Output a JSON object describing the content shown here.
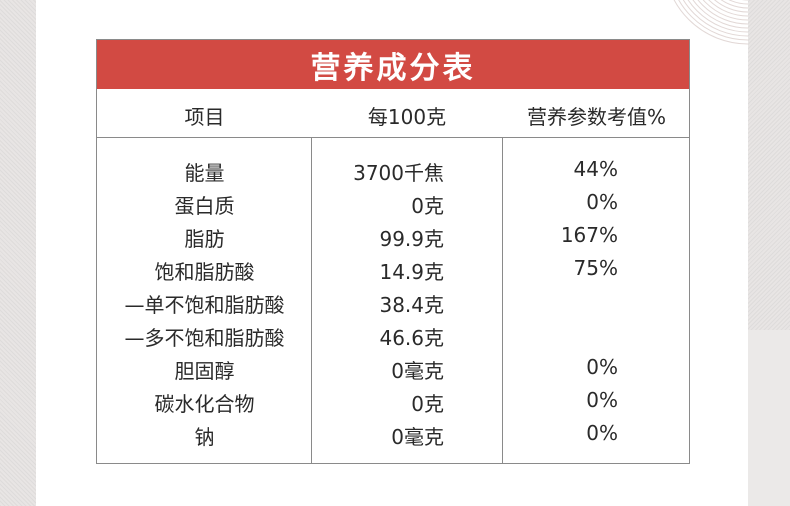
{
  "title": "营养成分表",
  "headers": {
    "item": "项目",
    "per100": "每100克",
    "nrv": "营养参数考值%"
  },
  "rows": [
    {
      "name": "能量",
      "amount": "3700千焦",
      "nrv": "44%"
    },
    {
      "name": "蛋白质",
      "amount": "0克",
      "nrv": "0%"
    },
    {
      "name": "脂肪",
      "amount": "99.9克",
      "nrv": "167%"
    },
    {
      "name": "饱和脂肪酸",
      "amount": "14.9克",
      "nrv": "75%"
    },
    {
      "name": "—单不饱和脂肪酸",
      "amount": "38.4克",
      "nrv": ""
    },
    {
      "name": "—多不饱和脂肪酸",
      "amount": "46.6克",
      "nrv": ""
    },
    {
      "name": "胆固醇",
      "amount": "0毫克",
      "nrv": "0%"
    },
    {
      "name": "碳水化合物",
      "amount": "0克",
      "nrv": "0%"
    },
    {
      "name": "钠",
      "amount": "0毫克",
      "nrv": "0%"
    }
  ],
  "colors": {
    "title_bg": "#d24a43",
    "border": "#8a8a8a",
    "page_bg": "#ebe9e8"
  }
}
